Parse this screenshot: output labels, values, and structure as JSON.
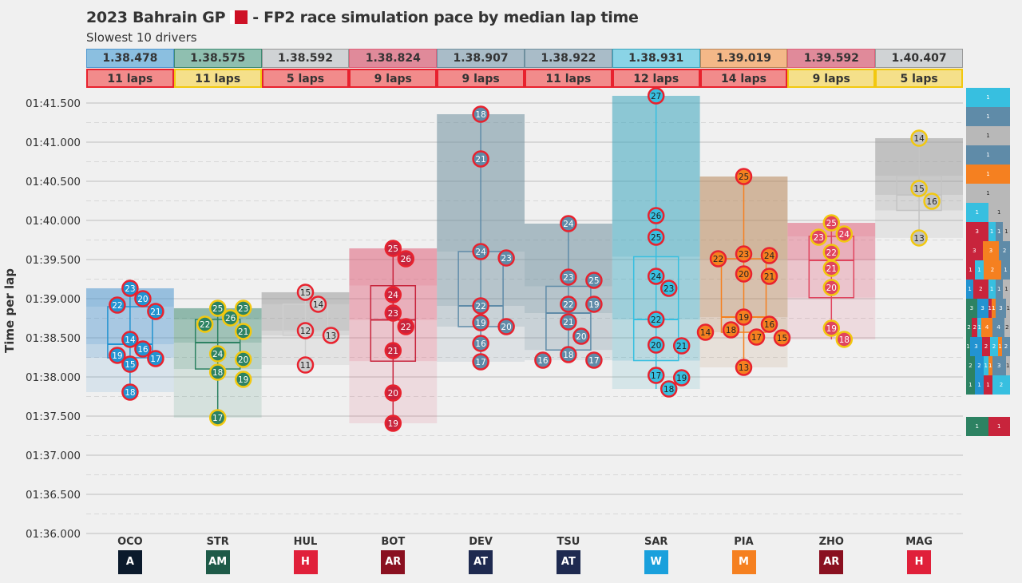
{
  "title": "2023 Bahrain GP",
  "title_rest": "- FP2 race simulation pace by median lap time",
  "subtitle": "Slowest 10 drivers",
  "compound_colors": {
    "soft": "#e8222e",
    "medium": "#f2c80f"
  },
  "chart_data": {
    "type": "box-scatter",
    "ylabel": "Time per lap",
    "ylim": [
      "01:36.000",
      "01:41.650"
    ],
    "yticks": [
      "01:41.500",
      "01:41.000",
      "01:40.500",
      "01:40.000",
      "01:39.500",
      "01:39.000",
      "01:38.500",
      "01:38.000",
      "01:37.500",
      "01:37.000",
      "01:36.500",
      "01:36.000"
    ],
    "grid": true,
    "drivers": [
      {
        "code": "OCO",
        "median": "1.38.478",
        "laps": "11 laps",
        "compound": "soft",
        "header_color": "#8bbfe0",
        "band_color": "#4f97d0",
        "dot_color": "#2293d1",
        "text_color": "#ffffff",
        "logo_color": "#0b1a2c",
        "logo": "A",
        "dots": [
          {
            "lap": "20",
            "time": "01:39.000"
          },
          {
            "lap": "21",
            "time": "01:38.837"
          },
          {
            "lap": "22",
            "time": "01:38.918"
          },
          {
            "lap": "23",
            "time": "01:39.133"
          },
          {
            "lap": "14",
            "time": "01:38.480"
          },
          {
            "lap": "16",
            "time": "01:38.357"
          },
          {
            "lap": "17",
            "time": "01:38.235"
          },
          {
            "lap": "15",
            "time": "01:38.163"
          },
          {
            "lap": "19",
            "time": "01:38.276"
          },
          {
            "lap": "18",
            "time": "01:37.806"
          }
        ]
      },
      {
        "code": "STR",
        "median": "1.38.575",
        "laps": "11 laps",
        "compound": "medium",
        "header_color": "#8fbfb0",
        "band_color": "#3f8a72",
        "dot_color": "#2d8262",
        "text_color": "#ffffff",
        "logo_color": "#1e5a48",
        "logo": "AM",
        "dots": [
          {
            "lap": "25",
            "time": "01:38.878"
          },
          {
            "lap": "26",
            "time": "01:38.755"
          },
          {
            "lap": "23",
            "time": "01:38.878"
          },
          {
            "lap": "22",
            "time": "01:38.673"
          },
          {
            "lap": "21",
            "time": "01:38.582"
          },
          {
            "lap": "24",
            "time": "01:38.296"
          },
          {
            "lap": "20",
            "time": "01:38.224"
          },
          {
            "lap": "18",
            "time": "01:38.061"
          },
          {
            "lap": "19",
            "time": "01:37.969"
          },
          {
            "lap": "17",
            "time": "01:37.480"
          }
        ]
      },
      {
        "code": "HUL",
        "median": "1.38.592",
        "laps": "5 laps",
        "compound": "soft",
        "header_color": "#d0d3d5",
        "band_color": "#9a9a9a",
        "dot_color": "#cfcfcf",
        "text_color": "#222222",
        "logo_color": "#e0203a",
        "logo": "H",
        "dots": [
          {
            "lap": "15",
            "time": "01:39.082"
          },
          {
            "lap": "14",
            "time": "01:38.929"
          },
          {
            "lap": "12",
            "time": "01:38.592"
          },
          {
            "lap": "13",
            "time": "01:38.531"
          },
          {
            "lap": "11",
            "time": "01:38.153"
          }
        ]
      },
      {
        "code": "BOT",
        "median": "1.38.824",
        "laps": "9 laps",
        "compound": "soft",
        "header_color": "#e08a9a",
        "band_color": "#e0607a",
        "dot_color": "#c8243c",
        "text_color": "#ffffff",
        "logo_color": "#8a1020",
        "logo": "AR",
        "dots": [
          {
            "lap": "25",
            "time": "01:39.643"
          },
          {
            "lap": "26",
            "time": "01:39.510"
          },
          {
            "lap": "24",
            "time": "01:39.051"
          },
          {
            "lap": "23",
            "time": "01:38.816"
          },
          {
            "lap": "22",
            "time": "01:38.643"
          },
          {
            "lap": "21",
            "time": "01:38.337"
          },
          {
            "lap": "20",
            "time": "01:37.796"
          },
          {
            "lap": "19",
            "time": "01:37.408"
          }
        ]
      },
      {
        "code": "DEV",
        "median": "1.38.907",
        "laps": "9 laps",
        "compound": "soft",
        "header_color": "#a9bcc8",
        "band_color": "#6f8f9e",
        "dot_color": "#5f8ba8",
        "text_color": "#ffffff",
        "logo_color": "#1e2a50",
        "logo": "AT",
        "dots": [
          {
            "lap": "18",
            "time": "01:41.357"
          },
          {
            "lap": "21",
            "time": "01:40.786"
          },
          {
            "lap": "23",
            "time": "01:39.520"
          },
          {
            "lap": "24",
            "time": "01:39.602"
          },
          {
            "lap": "22",
            "time": "01:38.908"
          },
          {
            "lap": "19",
            "time": "01:38.694"
          },
          {
            "lap": "20",
            "time": "01:38.643"
          },
          {
            "lap": "16",
            "time": "01:38.429"
          },
          {
            "lap": "17",
            "time": "01:38.194"
          }
        ]
      },
      {
        "code": "TSU",
        "median": "1.38.922",
        "laps": "11 laps",
        "compound": "soft",
        "header_color": "#a9bcc8",
        "band_color": "#6f8f9e",
        "dot_color": "#5f8ba8",
        "text_color": "#ffffff",
        "logo_color": "#1e2a50",
        "logo": "AT",
        "dots": [
          {
            "lap": "24",
            "time": "01:39.959"
          },
          {
            "lap": "25",
            "time": "01:39.235"
          },
          {
            "lap": "23",
            "time": "01:39.276"
          },
          {
            "lap": "22",
            "time": "01:38.929"
          },
          {
            "lap": "19",
            "time": "01:38.929"
          },
          {
            "lap": "21",
            "time": "01:38.704"
          },
          {
            "lap": "20",
            "time": "01:38.520"
          },
          {
            "lap": "18",
            "time": "01:38.286"
          },
          {
            "lap": "17",
            "time": "01:38.214"
          },
          {
            "lap": "16",
            "time": "01:38.214"
          }
        ]
      },
      {
        "code": "SAR",
        "median": "1.38.931",
        "laps": "12 laps",
        "compound": "soft",
        "header_color": "#8ad4e6",
        "band_color": "#3aa6be",
        "dot_color": "#37bfe0",
        "text_color": "#222222",
        "logo_color": "#1aa0dc",
        "logo": "W",
        "dots": [
          {
            "lap": "27",
            "time": "01:41.592"
          },
          {
            "lap": "26",
            "time": "01:40.061"
          },
          {
            "lap": "25",
            "time": "01:39.786"
          },
          {
            "lap": "24",
            "time": "01:39.286"
          },
          {
            "lap": "23",
            "time": "01:39.133"
          },
          {
            "lap": "22",
            "time": "01:38.735"
          },
          {
            "lap": "21",
            "time": "01:38.398"
          },
          {
            "lap": "20",
            "time": "01:38.408"
          },
          {
            "lap": "17",
            "time": "01:38.020"
          },
          {
            "lap": "19",
            "time": "01:37.990"
          },
          {
            "lap": "18",
            "time": "01:37.847"
          }
        ]
      },
      {
        "code": "PIA",
        "median": "1.39.019",
        "laps": "14 laps",
        "compound": "soft",
        "header_color": "#f4b888",
        "band_color": "#b8865a",
        "dot_color": "#f58020",
        "text_color": "#222222",
        "logo_color": "#f58020",
        "logo": "M",
        "dots": [
          {
            "lap": "25",
            "time": "01:40.561"
          },
          {
            "lap": "23",
            "time": "01:39.571"
          },
          {
            "lap": "22",
            "time": "01:39.510"
          },
          {
            "lap": "24",
            "time": "01:39.551"
          },
          {
            "lap": "21",
            "time": "01:39.286"
          },
          {
            "lap": "20",
            "time": "01:39.316"
          },
          {
            "lap": "19",
            "time": "01:38.765"
          },
          {
            "lap": "18",
            "time": "01:38.602"
          },
          {
            "lap": "17",
            "time": "01:38.510"
          },
          {
            "lap": "15",
            "time": "01:38.500"
          },
          {
            "lap": "14",
            "time": "01:38.571"
          },
          {
            "lap": "16",
            "time": "01:38.673"
          },
          {
            "lap": "13",
            "time": "01:38.122"
          }
        ]
      },
      {
        "code": "ZHO",
        "median": "1.39.592",
        "laps": "9 laps",
        "compound": "medium",
        "header_color": "#e08a9a",
        "band_color": "#e0607a",
        "dot_color": "#e0445e",
        "text_color": "#ffffff",
        "logo_color": "#8a1020",
        "logo": "AR",
        "dots": [
          {
            "lap": "25",
            "time": "01:39.969"
          },
          {
            "lap": "24",
            "time": "01:39.827"
          },
          {
            "lap": "23",
            "time": "01:39.786"
          },
          {
            "lap": "22",
            "time": "01:39.592"
          },
          {
            "lap": "21",
            "time": "01:39.388"
          },
          {
            "lap": "20",
            "time": "01:39.143"
          },
          {
            "lap": "19",
            "time": "01:38.622"
          },
          {
            "lap": "18",
            "time": "01:38.480"
          }
        ]
      },
      {
        "code": "MAG",
        "median": "1.40.407",
        "laps": "5 laps",
        "compound": "medium",
        "header_color": "#d0d3d5",
        "band_color": "#9a9a9a",
        "dot_color": "#c4c4c4",
        "text_color": "#222222",
        "logo_color": "#e0203a",
        "logo": "H",
        "dots": [
          {
            "lap": "14",
            "time": "01:41.051"
          },
          {
            "lap": "15",
            "time": "01:40.408"
          },
          {
            "lap": "16",
            "time": "01:40.245"
          },
          {
            "lap": "13",
            "time": "01:39.776"
          }
        ]
      }
    ],
    "histogram": {
      "team_colors": {
        "OCO": "#2293d1",
        "STR": "#2d8262",
        "GREY": "#b8b8b8",
        "BOT": "#c8243c",
        "AT": "#5f8ba8",
        "SAR": "#37bfe0",
        "PIA": "#f58020"
      },
      "rows": [
        [
          [
            "SAR",
            1
          ]
        ],
        [
          [
            "AT",
            1
          ]
        ],
        [
          [
            "GREY",
            1
          ]
        ],
        [
          [
            "AT",
            1
          ]
        ],
        [
          [
            "PIA",
            1
          ]
        ],
        [
          [
            "GREY",
            1
          ]
        ],
        [
          [
            "SAR",
            1
          ],
          [
            "GREY",
            1
          ]
        ],
        [
          [
            "BOT",
            3
          ],
          [
            "SAR",
            1
          ],
          [
            "AT",
            1
          ],
          [
            "GREY",
            1
          ]
        ],
        [
          [
            "BOT",
            3
          ],
          [
            "PIA",
            3
          ],
          [
            "AT",
            2
          ]
        ],
        [
          [
            "BOT",
            1
          ],
          [
            "SAR",
            1
          ],
          [
            "PIA",
            2
          ],
          [
            "AT",
            1
          ]
        ],
        [
          [
            "OCO",
            1
          ],
          [
            "BOT",
            2
          ],
          [
            "SAR",
            1
          ],
          [
            "AT",
            1
          ],
          [
            "GREY",
            1
          ]
        ],
        [
          [
            "STR",
            3
          ],
          [
            "OCO",
            3
          ],
          [
            "BOT",
            1
          ],
          [
            "PIA",
            1
          ],
          [
            "AT",
            3
          ],
          [
            "GREY",
            1
          ]
        ],
        [
          [
            "STR",
            2
          ],
          [
            "BOT",
            2
          ],
          [
            "SAR",
            1
          ],
          [
            "PIA",
            4
          ],
          [
            "AT",
            4
          ],
          [
            "GREY",
            2
          ]
        ],
        [
          [
            "STR",
            1
          ],
          [
            "OCO",
            3
          ],
          [
            "BOT",
            2
          ],
          [
            "SAR",
            2
          ],
          [
            "PIA",
            1
          ],
          [
            "AT",
            2
          ]
        ],
        [
          [
            "STR",
            2
          ],
          [
            "OCO",
            2
          ],
          [
            "SAR",
            1
          ],
          [
            "PIA",
            1
          ],
          [
            "AT",
            3
          ],
          [
            "GREY",
            1
          ]
        ],
        [
          [
            "STR",
            1
          ],
          [
            "OCO",
            1
          ],
          [
            "BOT",
            1
          ],
          [
            "SAR",
            2
          ]
        ]
      ],
      "bottom_row": [
        [
          "STR",
          1
        ],
        [
          "BOT",
          1
        ]
      ]
    }
  }
}
